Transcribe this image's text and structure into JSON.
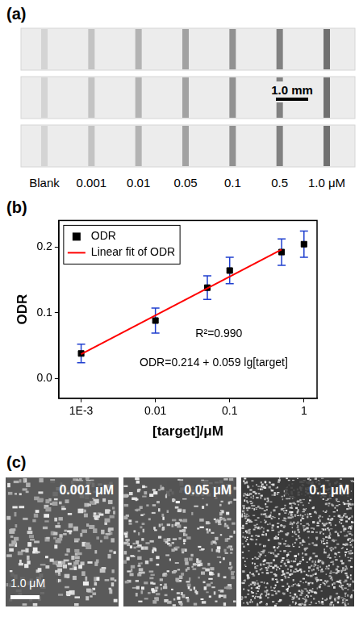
{
  "panel_a": {
    "letter": "(a)",
    "labels": [
      "Blank",
      "0.001",
      "0.01",
      "0.05",
      "0.1",
      "0.5",
      "1.0 μM"
    ],
    "scale_bar": "1.0 mm"
  },
  "chart_data": {
    "letter": "(b)",
    "type": "scatter",
    "x_label": "[target]/μM",
    "y_label": "ODR",
    "log": "x",
    "grid": false,
    "legend": "top-left",
    "xlim": [
      0.0005,
      1.5
    ],
    "xticks": [
      {
        "value": 0.001,
        "label": "1E-3"
      },
      0.01,
      0.1,
      1
    ],
    "ylim": [
      -0.03,
      0.24
    ],
    "yticks": [
      {
        "value": 0,
        "label": "0.0"
      },
      0.1,
      0.2
    ],
    "annotations": [
      "R²=0.990",
      "ODR=0.214 + 0.059 lg[target]"
    ],
    "series": [
      {
        "name": "ODR",
        "type": "scatter",
        "marker": "square",
        "color": "#000000",
        "x": [
          0.001,
          0.01,
          0.05,
          0.1,
          0.5,
          1
        ],
        "values": [
          0.038,
          0.088,
          0.138,
          0.164,
          0.192,
          0.204
        ],
        "error": [
          0.014,
          0.019,
          0.018,
          0.02,
          0.02,
          0.02
        ]
      },
      {
        "name": "Linear fit of ODR",
        "type": "line",
        "line_style": "solid",
        "color": "#ff0000",
        "x": [
          0.001,
          0.5
        ],
        "values": [
          0.037,
          0.196
        ]
      }
    ]
  },
  "panel_c": {
    "letter": "(c)",
    "images": [
      "0.001 μM",
      "0.05 μM",
      "0.1 μM"
    ],
    "scale_bar": "1.0 μM"
  }
}
